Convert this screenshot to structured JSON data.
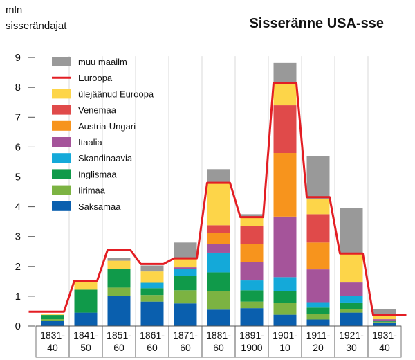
{
  "chart_data": {
    "type": "bar",
    "title": "Sisseränne USA-sse",
    "ylabel_lines": [
      "mln",
      "sisserändajat"
    ],
    "xlabel": "",
    "ylim": [
      0,
      9
    ],
    "yticks": [
      "0",
      "1",
      "2",
      "3",
      "4",
      "5",
      "6",
      "7",
      "8",
      "9"
    ],
    "stacked": true,
    "grid": "vertical",
    "legend_position": "top-left",
    "categories": [
      [
        "1831-",
        "40"
      ],
      [
        "1841-",
        "50"
      ],
      [
        "1851-",
        "60"
      ],
      [
        "1861-",
        "60"
      ],
      [
        "1871-",
        "60"
      ],
      [
        "1881-",
        "60"
      ],
      [
        "1891-",
        "1900"
      ],
      [
        "1901-",
        "10"
      ],
      [
        "1911-",
        "20"
      ],
      [
        "1921-",
        "30"
      ],
      [
        "1931-",
        "40"
      ]
    ],
    "series": [
      {
        "name": "Saksamaa",
        "color": "#0a5fae",
        "values": [
          0.18,
          0.45,
          1.02,
          0.82,
          0.76,
          0.55,
          0.6,
          0.38,
          0.22,
          0.45,
          0.12
        ]
      },
      {
        "name": "Iirimaa",
        "color": "#7cb342",
        "values": [
          0.05,
          0.0,
          0.27,
          0.22,
          0.44,
          0.62,
          0.22,
          0.4,
          0.18,
          0.12,
          0.02
        ]
      },
      {
        "name": "Inglismaa",
        "color": "#109a4a",
        "values": [
          0.14,
          0.77,
          0.62,
          0.23,
          0.48,
          0.63,
          0.38,
          0.38,
          0.22,
          0.22,
          0.02
        ]
      },
      {
        "name": "Skandinaavia",
        "color": "#14a9d9",
        "values": [
          0.0,
          0.0,
          0.0,
          0.18,
          0.24,
          0.66,
          0.33,
          0.48,
          0.18,
          0.22,
          0.0
        ]
      },
      {
        "name": "Itaalia",
        "color": "#a5549a",
        "values": [
          0.0,
          0.0,
          0.0,
          0.0,
          0.05,
          0.3,
          0.62,
          2.03,
          1.1,
          0.45,
          0.07
        ]
      },
      {
        "name": "Austria-Ungari",
        "color": "#f7941d",
        "values": [
          0.0,
          0.0,
          0.0,
          0.0,
          0.0,
          0.35,
          0.6,
          2.13,
          0.9,
          0.0,
          0.0
        ]
      },
      {
        "name": "Venemaa",
        "color": "#e04a4a",
        "values": [
          0.0,
          0.0,
          0.0,
          0.0,
          0.0,
          0.27,
          0.6,
          1.6,
          0.95,
          0.0,
          0.0
        ]
      },
      {
        "name": "ülejäänud Euroopa",
        "color": "#fdd549",
        "values": [
          0.02,
          0.28,
          0.28,
          0.38,
          0.28,
          1.4,
          0.27,
          0.75,
          0.5,
          0.95,
          0.11
        ]
      },
      {
        "name": "muu maailm",
        "color": "#999999",
        "values": [
          0.0,
          0.0,
          0.09,
          0.2,
          0.55,
          0.48,
          0.13,
          0.67,
          1.45,
          1.55,
          0.22
        ]
      }
    ],
    "line": {
      "name": "Euroopa",
      "color": "#e31e24",
      "values": [
        0.48,
        1.52,
        2.55,
        2.08,
        2.27,
        4.8,
        3.65,
        8.15,
        4.32,
        2.43,
        0.37
      ]
    }
  }
}
